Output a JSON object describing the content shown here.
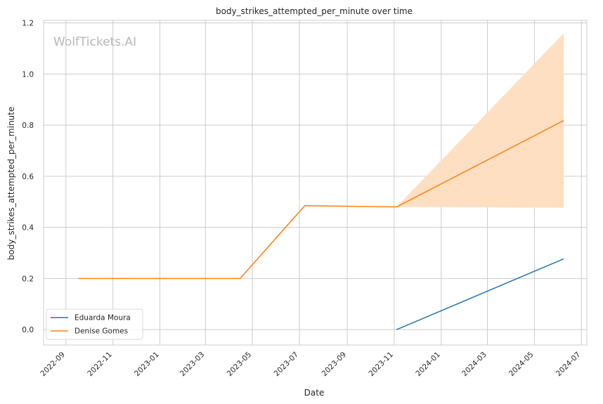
{
  "chart_data": {
    "type": "line",
    "title": "body_strikes_attempted_per_minute over time",
    "xlabel": "Date",
    "ylabel": "body_strikes_attempted_per_minute",
    "watermark": "WolfTickets.AI",
    "xlim": [
      "2022-08-03",
      "2024-07-08"
    ],
    "ylim": [
      -0.06,
      1.21
    ],
    "x_ticks": [
      "2022-09",
      "2022-11",
      "2023-01",
      "2023-03",
      "2023-05",
      "2023-07",
      "2023-09",
      "2023-11",
      "2024-01",
      "2024-03",
      "2024-05",
      "2024-07"
    ],
    "y_ticks": [
      "0.0",
      "0.2",
      "0.4",
      "0.6",
      "0.8",
      "1.0",
      "1.2"
    ],
    "grid": true,
    "legend_position": "lower-left",
    "series": [
      {
        "name": "Eduarda Moura",
        "color": "#1f77b4",
        "points": [
          [
            "2023-11-04",
            0.0
          ],
          [
            "2024-06-08",
            0.277
          ]
        ]
      },
      {
        "name": "Denise Gomes",
        "color": "#ff7f0e",
        "points": [
          [
            "2022-09-17",
            0.2
          ],
          [
            "2023-04-15",
            0.2
          ],
          [
            "2023-07-08",
            0.485
          ],
          [
            "2023-11-04",
            0.48
          ],
          [
            "2024-06-08",
            0.818
          ]
        ],
        "band": {
          "color": "#ffdfc2",
          "x": [
            "2023-11-04",
            "2024-06-08"
          ],
          "lower": [
            0.48,
            0.477
          ],
          "upper": [
            0.48,
            1.16
          ]
        }
      }
    ]
  }
}
